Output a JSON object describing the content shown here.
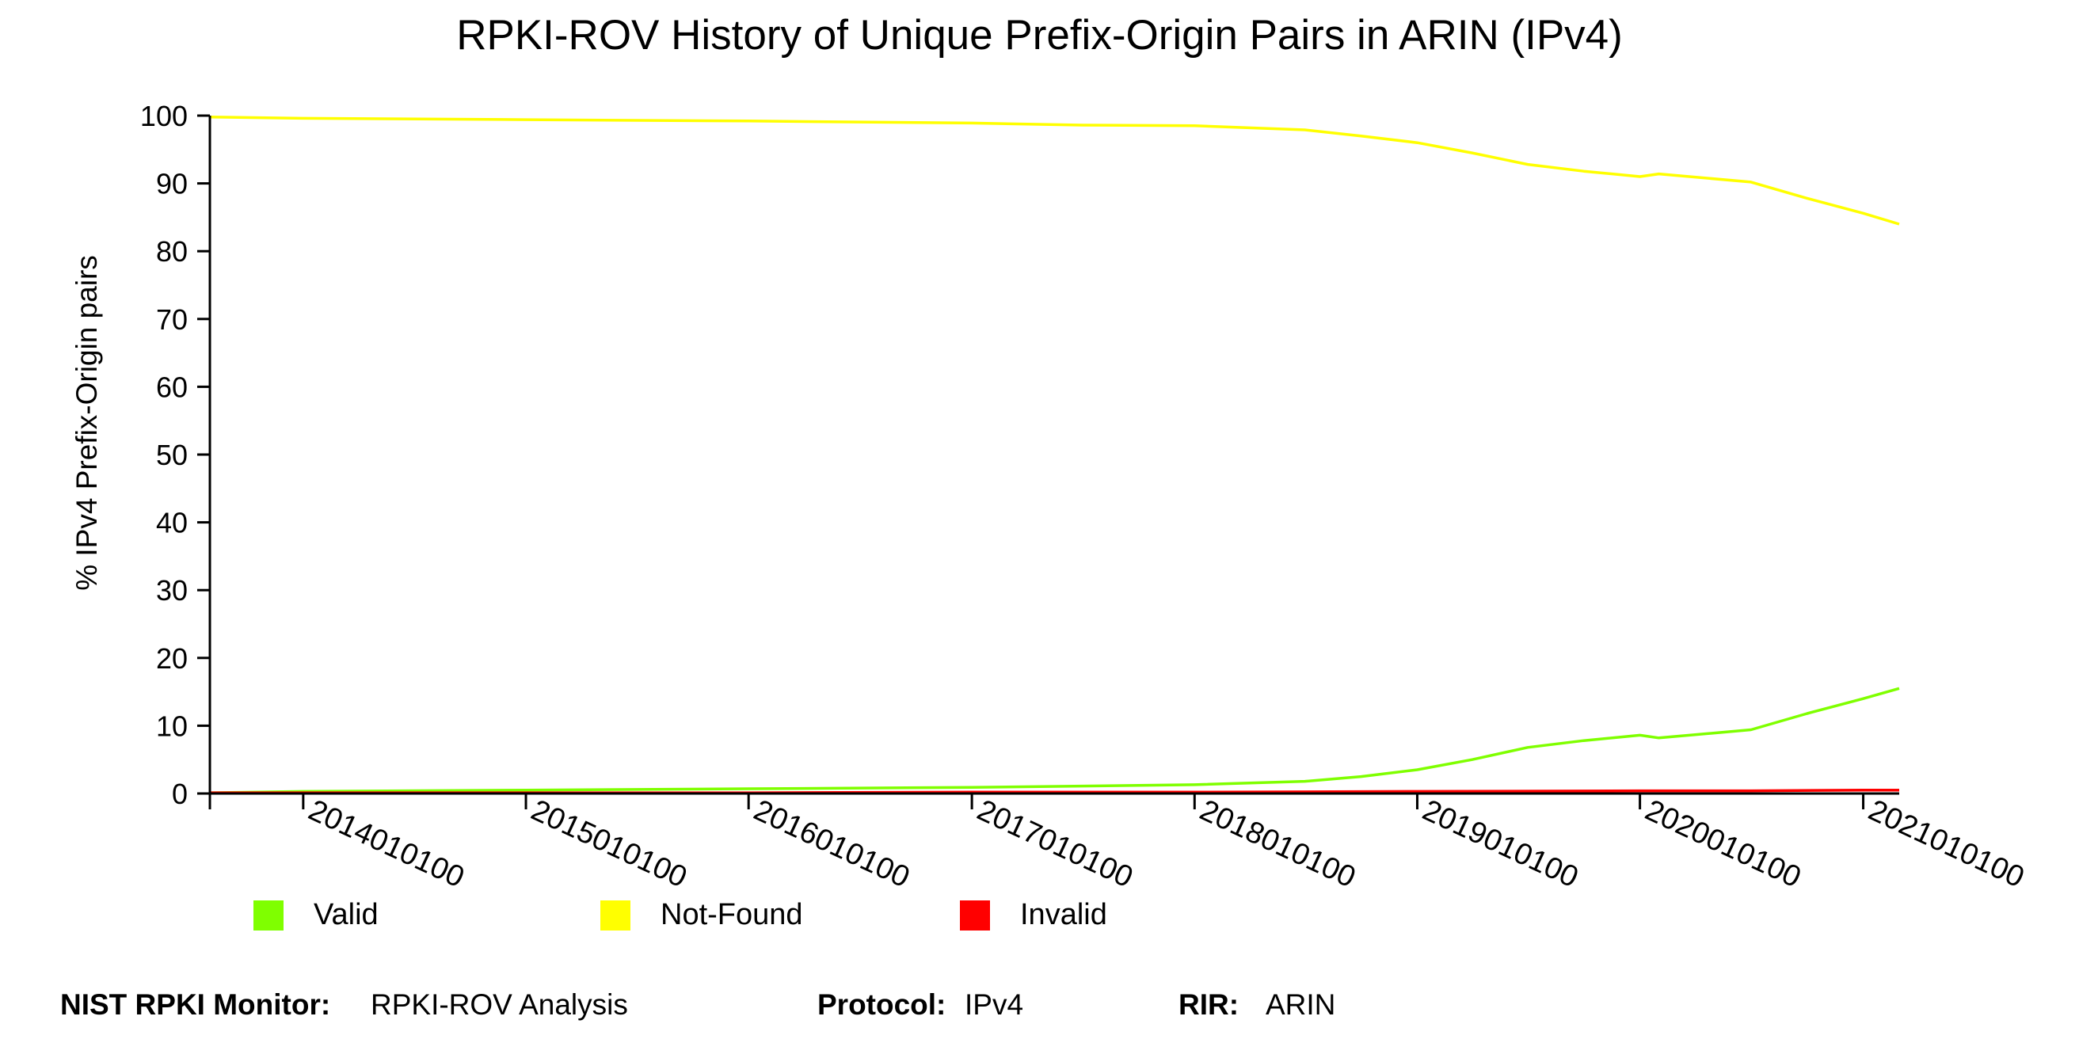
{
  "chart_data": {
    "type": "line",
    "title": "RPKI-ROV History of Unique Prefix-Origin Pairs in ARIN (IPv4)",
    "ylabel": "% IPv4 Prefix-Origin pairs",
    "xlabel": "",
    "ylim": [
      0,
      100
    ],
    "yticks": [
      0,
      10,
      20,
      30,
      40,
      50,
      60,
      70,
      80,
      90,
      100
    ],
    "xlim": [
      "2013-08-01",
      "2021-03-01"
    ],
    "xticks": [
      {
        "date": "2014-01-01",
        "label": "2014010100"
      },
      {
        "date": "2015-01-01",
        "label": "2015010100"
      },
      {
        "date": "2016-01-01",
        "label": "2016010100"
      },
      {
        "date": "2017-01-01",
        "label": "2017010100"
      },
      {
        "date": "2018-01-01",
        "label": "2018010100"
      },
      {
        "date": "2019-01-01",
        "label": "2019010100"
      },
      {
        "date": "2020-01-01",
        "label": "2020010100"
      },
      {
        "date": "2021-01-01",
        "label": "2021010100"
      }
    ],
    "grid": false,
    "legend_position": "bottom-left",
    "series": [
      {
        "name": "Valid",
        "color": "#7fff00",
        "points": [
          [
            "2013-08-01",
            0.1
          ],
          [
            "2014-01-01",
            0.3
          ],
          [
            "2015-01-01",
            0.5
          ],
          [
            "2016-01-01",
            0.7
          ],
          [
            "2017-01-01",
            0.9
          ],
          [
            "2017-07-01",
            1.1
          ],
          [
            "2018-01-01",
            1.3
          ],
          [
            "2018-07-01",
            1.8
          ],
          [
            "2018-10-01",
            2.5
          ],
          [
            "2019-01-01",
            3.5
          ],
          [
            "2019-04-01",
            5.0
          ],
          [
            "2019-07-01",
            6.8
          ],
          [
            "2019-10-01",
            7.8
          ],
          [
            "2020-01-01",
            8.6
          ],
          [
            "2020-02-01",
            8.2
          ],
          [
            "2020-07-01",
            9.4
          ],
          [
            "2020-10-01",
            11.8
          ],
          [
            "2021-01-01",
            14.0
          ],
          [
            "2021-03-01",
            15.5
          ]
        ]
      },
      {
        "name": "Not-Found",
        "color": "#ffff00",
        "points": [
          [
            "2013-08-01",
            99.8
          ],
          [
            "2014-01-01",
            99.6
          ],
          [
            "2015-01-01",
            99.4
          ],
          [
            "2016-01-01",
            99.2
          ],
          [
            "2017-01-01",
            98.9
          ],
          [
            "2017-07-01",
            98.6
          ],
          [
            "2018-01-01",
            98.5
          ],
          [
            "2018-07-01",
            97.9
          ],
          [
            "2018-10-01",
            97.0
          ],
          [
            "2019-01-01",
            96.0
          ],
          [
            "2019-04-01",
            94.5
          ],
          [
            "2019-07-01",
            92.8
          ],
          [
            "2019-10-01",
            91.8
          ],
          [
            "2020-01-01",
            91.0
          ],
          [
            "2020-02-01",
            91.4
          ],
          [
            "2020-07-01",
            90.2
          ],
          [
            "2020-10-01",
            87.8
          ],
          [
            "2021-01-01",
            85.6
          ],
          [
            "2021-03-01",
            84.0
          ]
        ]
      },
      {
        "name": "Invalid",
        "color": "#ff0000",
        "points": [
          [
            "2013-08-01",
            0.1
          ],
          [
            "2014-01-01",
            0.1
          ],
          [
            "2015-01-01",
            0.1
          ],
          [
            "2016-01-01",
            0.1
          ],
          [
            "2017-01-01",
            0.2
          ],
          [
            "2018-01-01",
            0.2
          ],
          [
            "2019-01-01",
            0.3
          ],
          [
            "2020-01-01",
            0.4
          ],
          [
            "2020-07-01",
            0.4
          ],
          [
            "2021-01-01",
            0.5
          ],
          [
            "2021-03-01",
            0.5
          ]
        ]
      }
    ]
  },
  "legend": [
    {
      "label": "Valid",
      "color": "#7fff00"
    },
    {
      "label": "Not-Found",
      "color": "#ffff00"
    },
    {
      "label": "Invalid",
      "color": "#ff0000"
    }
  ],
  "footer": {
    "monitor_key": "NIST RPKI Monitor:",
    "monitor_value": "RPKI-ROV Analysis",
    "protocol_key": "Protocol:",
    "protocol_value": "IPv4",
    "rir_key": "RIR:",
    "rir_value": "ARIN"
  }
}
